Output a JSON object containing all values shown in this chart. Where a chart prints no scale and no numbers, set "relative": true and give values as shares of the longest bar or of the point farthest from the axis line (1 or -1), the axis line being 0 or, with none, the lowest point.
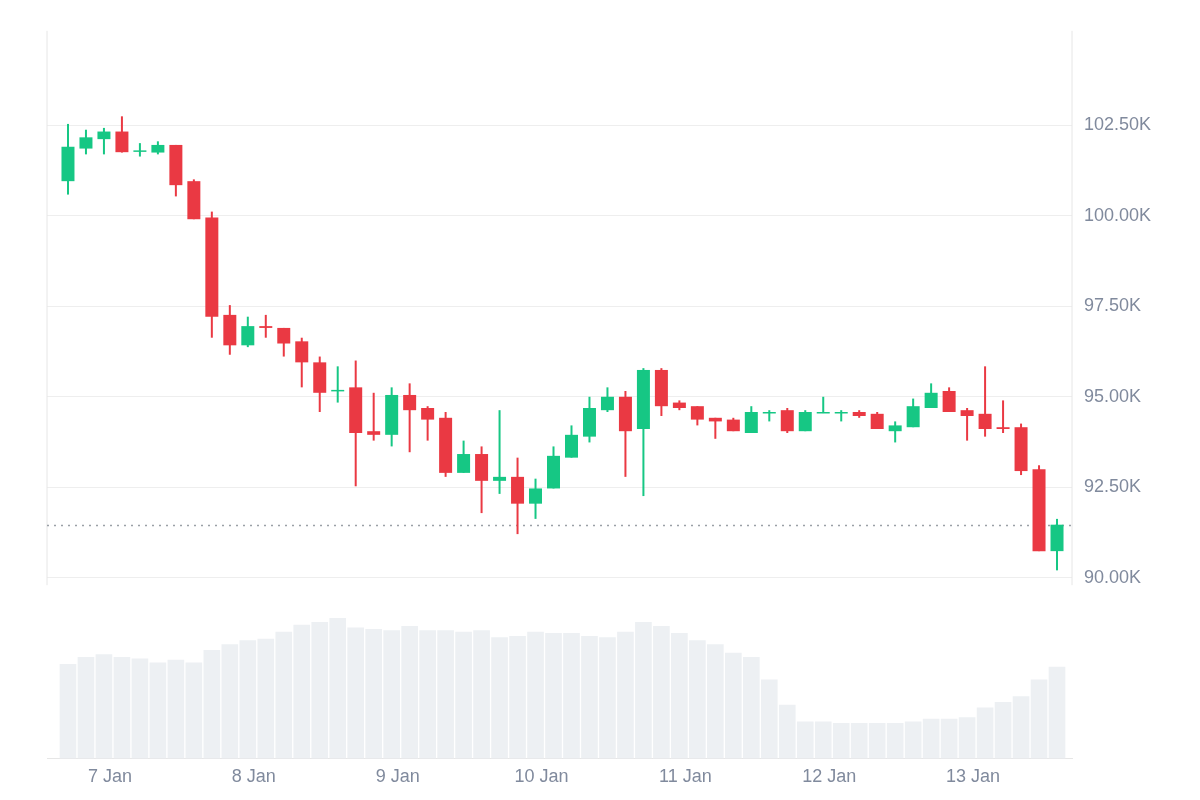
{
  "chart_data": [
    {
      "type": "candlestick",
      "x": [
        "--01-06T17:00",
        "--01-06T20:00",
        "--01-06T23:00",
        "--01-07T02:00",
        "--01-07T05:00",
        "--01-07T08:00",
        "--01-07T11:00",
        "--01-07T14:00",
        "--01-07T17:00",
        "--01-07T20:00",
        "--01-07T23:00",
        "--01-08T02:00",
        "--01-08T05:00",
        "--01-08T08:00",
        "--01-08T11:00",
        "--01-08T14:00",
        "--01-08T17:00",
        "--01-08T20:00",
        "--01-08T23:00",
        "--01-09T02:00",
        "--01-09T05:00",
        "--01-09T08:00",
        "--01-09T11:00",
        "--01-09T14:00",
        "--01-09T17:00",
        "--01-09T20:00",
        "--01-09T23:00",
        "--01-10T02:00",
        "--01-10T05:00",
        "--01-10T08:00",
        "--01-10T11:00",
        "--01-10T14:00",
        "--01-10T17:00",
        "--01-10T20:00",
        "--01-10T23:00",
        "--01-11T02:00",
        "--01-11T05:00",
        "--01-11T08:00",
        "--01-11T11:00",
        "--01-11T14:00",
        "--01-11T17:00",
        "--01-11T20:00",
        "--01-11T23:00",
        "--01-12T02:00",
        "--01-12T05:00",
        "--01-12T08:00",
        "--01-12T11:00",
        "--01-12T14:00",
        "--01-12T17:00",
        "--01-12T20:00",
        "--01-12T23:00",
        "--01-13T02:00",
        "--01-13T05:00",
        "--01-13T08:00",
        "--01-13T11:00",
        "--01-13T14:00"
      ],
      "ohlc": [
        [
          100950,
          102530,
          100580,
          101900
        ],
        [
          101850,
          102370,
          101690,
          102160
        ],
        [
          102110,
          102420,
          101690,
          102320
        ],
        [
          102320,
          102740,
          101740,
          101750
        ],
        [
          101780,
          102000,
          101630,
          101800
        ],
        [
          101740,
          102050,
          101690,
          101950
        ],
        [
          101950,
          101950,
          100530,
          100840
        ],
        [
          100950,
          101000,
          99900,
          99900
        ],
        [
          99950,
          100110,
          96630,
          97210
        ],
        [
          97260,
          97530,
          96160,
          96420
        ],
        [
          96420,
          97210,
          96370,
          96950
        ],
        [
          96950,
          97260,
          96630,
          96900
        ],
        [
          96900,
          96900,
          96110,
          96470
        ],
        [
          96530,
          96630,
          95260,
          95950
        ],
        [
          95950,
          96110,
          94580,
          95110
        ],
        [
          95160,
          95840,
          94840,
          95190
        ],
        [
          95260,
          96000,
          92530,
          94000
        ],
        [
          94050,
          95110,
          93790,
          93950
        ],
        [
          93950,
          95260,
          93630,
          95050
        ],
        [
          95050,
          95370,
          93470,
          94630
        ],
        [
          94690,
          94740,
          93790,
          94370
        ],
        [
          94420,
          94580,
          92790,
          92900
        ],
        [
          92900,
          93790,
          92900,
          93420
        ],
        [
          93420,
          93630,
          91790,
          92680
        ],
        [
          92680,
          94630,
          92320,
          92790
        ],
        [
          92790,
          93320,
          91210,
          92050
        ],
        [
          92050,
          92740,
          91630,
          92470
        ],
        [
          92470,
          93630,
          92470,
          93370
        ],
        [
          93320,
          94210,
          93320,
          93950
        ],
        [
          93900,
          95000,
          93740,
          94690
        ],
        [
          94630,
          95260,
          94580,
          95000
        ],
        [
          95000,
          95160,
          92790,
          94050
        ],
        [
          94110,
          95790,
          92260,
          95740
        ],
        [
          95740,
          95790,
          94470,
          94740
        ],
        [
          94840,
          94900,
          94630,
          94690
        ],
        [
          94740,
          94740,
          94210,
          94370
        ],
        [
          94420,
          94420,
          93840,
          94320
        ],
        [
          94370,
          94420,
          94050,
          94050
        ],
        [
          94000,
          94740,
          94000,
          94580
        ],
        [
          94550,
          94630,
          94320,
          94580
        ],
        [
          94630,
          94690,
          94000,
          94050
        ],
        [
          94050,
          94630,
          94050,
          94580
        ],
        [
          94550,
          95000,
          94550,
          94580
        ],
        [
          94550,
          94630,
          94320,
          94580
        ],
        [
          94580,
          94630,
          94420,
          94470
        ],
        [
          94530,
          94580,
          94110,
          94110
        ],
        [
          94050,
          94320,
          93740,
          94210
        ],
        [
          94160,
          94950,
          94160,
          94740
        ],
        [
          94690,
          95370,
          94690,
          95110
        ],
        [
          95160,
          95260,
          94580,
          94580
        ],
        [
          94630,
          94690,
          93790,
          94470
        ],
        [
          94530,
          95840,
          93900,
          94110
        ],
        [
          94160,
          94900,
          94000,
          94110
        ],
        [
          94160,
          94260,
          92840,
          92950
        ],
        [
          93000,
          93110,
          90740,
          90740
        ],
        [
          90740,
          91630,
          90210,
          91470
        ]
      ],
      "colors": [
        "#16c784",
        "#16c784",
        "#16c784",
        "#ea3943",
        "#16c784",
        "#16c784",
        "#ea3943",
        "#ea3943",
        "#ea3943",
        "#ea3943",
        "#16c784",
        "#ea3943",
        "#ea3943",
        "#ea3943",
        "#ea3943",
        "#16c784",
        "#ea3943",
        "#ea3943",
        "#16c784",
        "#ea3943",
        "#ea3943",
        "#ea3943",
        "#16c784",
        "#ea3943",
        "#16c784",
        "#ea3943",
        "#16c784",
        "#16c784",
        "#16c784",
        "#16c784",
        "#16c784",
        "#ea3943",
        "#16c784",
        "#ea3943",
        "#ea3943",
        "#ea3943",
        "#ea3943",
        "#ea3943",
        "#16c784",
        "#16c784",
        "#ea3943",
        "#16c784",
        "#16c784",
        "#16c784",
        "#ea3943",
        "#ea3943",
        "#16c784",
        "#16c784",
        "#16c784",
        "#ea3943",
        "#ea3943",
        "#ea3943",
        "#ea3943",
        "#ea3943",
        "#ea3943",
        "#16c784"
      ],
      "xlim": [
        "--01-06T13:30",
        "--01-13T16:30"
      ],
      "ylim": [
        89800,
        105100
      ],
      "yticks": [
        {
          "value": 90000,
          "label": "90.00K"
        },
        {
          "value": 92500,
          "label": "92.50K"
        },
        {
          "value": 95000,
          "label": "95.00K"
        },
        {
          "value": 97500,
          "label": "97.50K"
        },
        {
          "value": 100000,
          "label": "100.00K"
        },
        {
          "value": 102500,
          "label": "102.50K"
        }
      ],
      "ref_lines": [
        {
          "axis": "y",
          "value": 91450,
          "color": "#9aa0a6",
          "line_style": "dotted"
        }
      ],
      "grid": "y",
      "tick_labels": "y"
    },
    {
      "type": "bar",
      "relative": true,
      "color": "#edf0f3",
      "x": [
        "--01-06T17:00",
        "--01-06T20:00",
        "--01-06T23:00",
        "--01-07T02:00",
        "--01-07T05:00",
        "--01-07T08:00",
        "--01-07T11:00",
        "--01-07T14:00",
        "--01-07T17:00",
        "--01-07T20:00",
        "--01-07T23:00",
        "--01-08T02:00",
        "--01-08T05:00",
        "--01-08T08:00",
        "--01-08T11:00",
        "--01-08T14:00",
        "--01-08T17:00",
        "--01-08T20:00",
        "--01-08T23:00",
        "--01-09T02:00",
        "--01-09T05:00",
        "--01-09T08:00",
        "--01-09T11:00",
        "--01-09T14:00",
        "--01-09T17:00",
        "--01-09T20:00",
        "--01-09T23:00",
        "--01-10T02:00",
        "--01-10T05:00",
        "--01-10T08:00",
        "--01-10T11:00",
        "--01-10T14:00",
        "--01-10T17:00",
        "--01-10T20:00",
        "--01-10T23:00",
        "--01-11T02:00",
        "--01-11T05:00",
        "--01-11T08:00",
        "--01-11T11:00",
        "--01-11T14:00",
        "--01-11T17:00",
        "--01-11T20:00",
        "--01-11T23:00",
        "--01-12T02:00",
        "--01-12T05:00",
        "--01-12T08:00",
        "--01-12T11:00",
        "--01-12T14:00",
        "--01-12T17:00",
        "--01-12T20:00",
        "--01-12T23:00",
        "--01-13T02:00",
        "--01-13T05:00",
        "--01-13T08:00",
        "--01-13T11:00",
        "--01-13T14:00"
      ],
      "values": [
        0.67,
        0.72,
        0.74,
        0.72,
        0.71,
        0.68,
        0.7,
        0.68,
        0.77,
        0.81,
        0.84,
        0.85,
        0.9,
        0.95,
        0.97,
        1,
        0.93,
        0.92,
        0.91,
        0.94,
        0.91,
        0.91,
        0.9,
        0.91,
        0.86,
        0.87,
        0.9,
        0.89,
        0.89,
        0.87,
        0.86,
        0.9,
        0.97,
        0.94,
        0.89,
        0.84,
        0.81,
        0.75,
        0.72,
        0.56,
        0.38,
        0.26,
        0.26,
        0.25,
        0.25,
        0.25,
        0.25,
        0.26,
        0.28,
        0.28,
        0.29,
        0.36,
        0.4,
        0.44,
        0.56,
        0.65
      ],
      "xlim": [
        "--01-06T13:30",
        "--01-13T16:30"
      ],
      "xticks": [
        {
          "value": "--01-07",
          "label": "7 Jan"
        },
        {
          "value": "--01-08",
          "label": "8 Jan"
        },
        {
          "value": "--01-09",
          "label": "9 Jan"
        },
        {
          "value": "--01-10",
          "label": "10 Jan"
        },
        {
          "value": "--01-11",
          "label": "11 Jan"
        },
        {
          "value": "--01-12",
          "label": "12 Jan"
        },
        {
          "value": "--01-13",
          "label": "13 Jan"
        }
      ]
    }
  ]
}
